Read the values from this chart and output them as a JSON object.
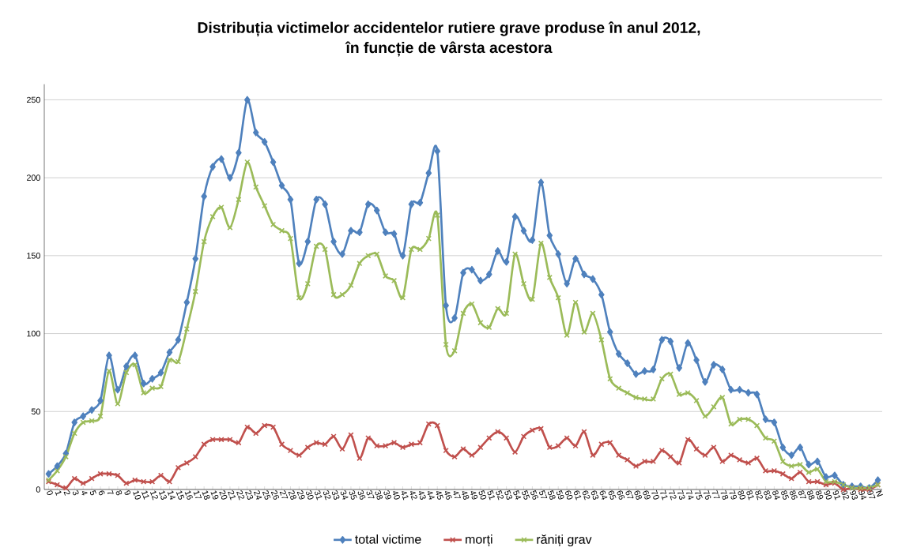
{
  "chart_data": {
    "type": "line",
    "title": "Distribuția victimelor accidentelor rutiere grave produse în anul 2012,\nîn funcție de vârsta acestora",
    "categories": [
      "0",
      "1",
      "2",
      "3",
      "4",
      "5",
      "6",
      "7",
      "8",
      "9",
      "10",
      "11",
      "12",
      "13",
      "14",
      "15",
      "16",
      "17",
      "18",
      "19",
      "20",
      "21",
      "22",
      "23",
      "24",
      "25",
      "26",
      "27",
      "28",
      "29",
      "30",
      "31",
      "32",
      "33",
      "34",
      "35",
      "36",
      "37",
      "38",
      "39",
      "40",
      "41",
      "42",
      "43",
      "44",
      "45",
      "46",
      "47",
      "48",
      "49",
      "50",
      "51",
      "52",
      "53",
      "54",
      "55",
      "56",
      "57",
      "58",
      "59",
      "60",
      "61",
      "62",
      "63",
      "64",
      "65",
      "66",
      "67",
      "68",
      "69",
      "70",
      "71",
      "72",
      "73",
      "74",
      "75",
      "76",
      "77",
      "78",
      "79",
      "80",
      "81",
      "82",
      "83",
      "84",
      "85",
      "86",
      "87",
      "88",
      "89",
      "90",
      "91",
      "92",
      "93",
      "94",
      "97",
      "N"
    ],
    "series": [
      {
        "name": "total victime",
        "color": "#4f81bd",
        "marker": "diamond",
        "values": [
          10,
          15,
          23,
          43,
          47,
          51,
          57,
          86,
          64,
          79,
          86,
          68,
          71,
          75,
          88,
          96,
          120,
          148,
          188,
          207,
          212,
          200,
          216,
          250,
          229,
          223,
          210,
          195,
          186,
          145,
          159,
          186,
          183,
          159,
          151,
          166,
          165,
          183,
          179,
          165,
          164,
          150,
          183,
          184,
          203,
          217,
          118,
          110,
          139,
          141,
          134,
          138,
          153,
          146,
          175,
          166,
          160,
          197,
          163,
          151,
          132,
          148,
          138,
          135,
          125,
          101,
          87,
          81,
          74,
          76,
          77,
          96,
          95,
          78,
          94,
          83,
          69,
          80,
          77,
          64,
          64,
          62,
          61,
          45,
          43,
          27,
          22,
          27,
          16,
          18,
          8,
          9,
          3,
          2,
          2,
          1,
          6
        ]
      },
      {
        "name": "morți",
        "color": "#c0504d",
        "marker": "cross",
        "values": [
          5,
          3,
          1,
          7,
          4,
          7,
          10,
          10,
          9,
          4,
          6,
          5,
          5,
          9,
          5,
          14,
          17,
          21,
          29,
          32,
          32,
          32,
          30,
          40,
          36,
          41,
          40,
          29,
          25,
          22,
          27,
          30,
          29,
          34,
          26,
          35,
          20,
          33,
          28,
          28,
          30,
          27,
          29,
          30,
          42,
          41,
          25,
          21,
          26,
          22,
          27,
          33,
          37,
          33,
          24,
          34,
          38,
          39,
          27,
          28,
          33,
          28,
          37,
          22,
          29,
          30,
          22,
          19,
          15,
          18,
          18,
          25,
          21,
          17,
          32,
          26,
          22,
          27,
          18,
          22,
          19,
          17,
          20,
          12,
          12,
          10,
          7,
          11,
          5,
          5,
          3,
          4,
          0,
          1,
          0,
          0,
          3
        ]
      },
      {
        "name": "răniți grav",
        "color": "#9bbb59",
        "marker": "cross",
        "values": [
          6,
          12,
          21,
          36,
          43,
          44,
          47,
          76,
          55,
          75,
          80,
          62,
          65,
          66,
          83,
          82,
          103,
          127,
          159,
          175,
          181,
          168,
          186,
          210,
          194,
          182,
          170,
          166,
          161,
          123,
          132,
          156,
          154,
          125,
          125,
          131,
          145,
          150,
          151,
          137,
          134,
          123,
          154,
          154,
          161,
          176,
          93,
          89,
          113,
          119,
          107,
          104,
          116,
          113,
          151,
          132,
          122,
          158,
          136,
          123,
          99,
          120,
          101,
          113,
          96,
          71,
          65,
          62,
          59,
          58,
          58,
          71,
          74,
          61,
          62,
          57,
          47,
          53,
          59,
          42,
          45,
          45,
          41,
          33,
          31,
          18,
          15,
          16,
          11,
          13,
          5,
          5,
          3,
          1,
          1,
          1,
          3
        ]
      }
    ],
    "ylim": [
      0,
      260
    ],
    "yticks": [
      0,
      50,
      100,
      150,
      200,
      250
    ],
    "grid": "y",
    "legend": "bottom"
  }
}
